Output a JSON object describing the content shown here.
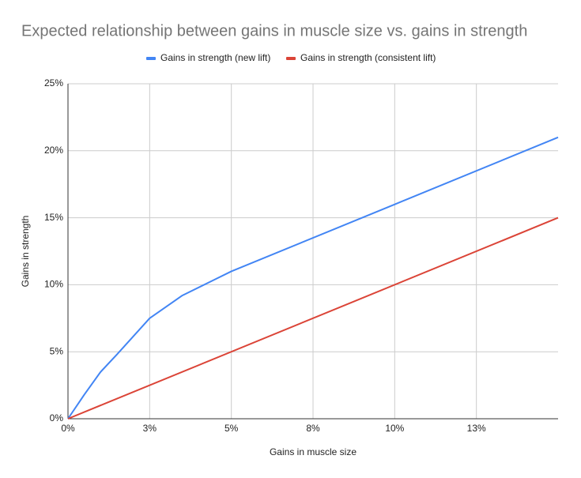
{
  "chart_data": {
    "type": "line",
    "title": "Expected relationship between gains in muscle size vs. gains in strength",
    "x_label": "Gains in muscle size",
    "y_label": "Gains in strength",
    "series": [
      {
        "name": "Gains in strength (new lift)",
        "color": "#4285f4",
        "x": [
          0,
          0.5,
          1,
          1.5,
          2.5,
          3.5,
          4.5,
          5,
          10,
          15
        ],
        "values": [
          0,
          1.8,
          3.5,
          4.8,
          7.5,
          9.2,
          10.4,
          11,
          16,
          21
        ]
      },
      {
        "name": "Gains in strength (consistent lift)",
        "color": "#db4437",
        "x": [
          0,
          15
        ],
        "values": [
          0,
          15
        ]
      }
    ],
    "xlim": [
      0,
      15
    ],
    "xticks": [
      {
        "value": 0,
        "label": "0%"
      },
      {
        "value": 2.5,
        "label": "3%"
      },
      {
        "value": 5,
        "label": "5%"
      },
      {
        "value": 7.5,
        "label": "8%"
      },
      {
        "value": 10,
        "label": "10%"
      },
      {
        "value": 12.5,
        "label": "13%"
      }
    ],
    "ylim": [
      0,
      25
    ],
    "yticks": [
      {
        "value": 0,
        "label": "0%"
      },
      {
        "value": 5,
        "label": "5%"
      },
      {
        "value": 10,
        "label": "10%"
      },
      {
        "value": 15,
        "label": "15%"
      },
      {
        "value": 20,
        "label": "20%"
      },
      {
        "value": 25,
        "label": "25%"
      }
    ],
    "grid": true,
    "legend": "top"
  }
}
